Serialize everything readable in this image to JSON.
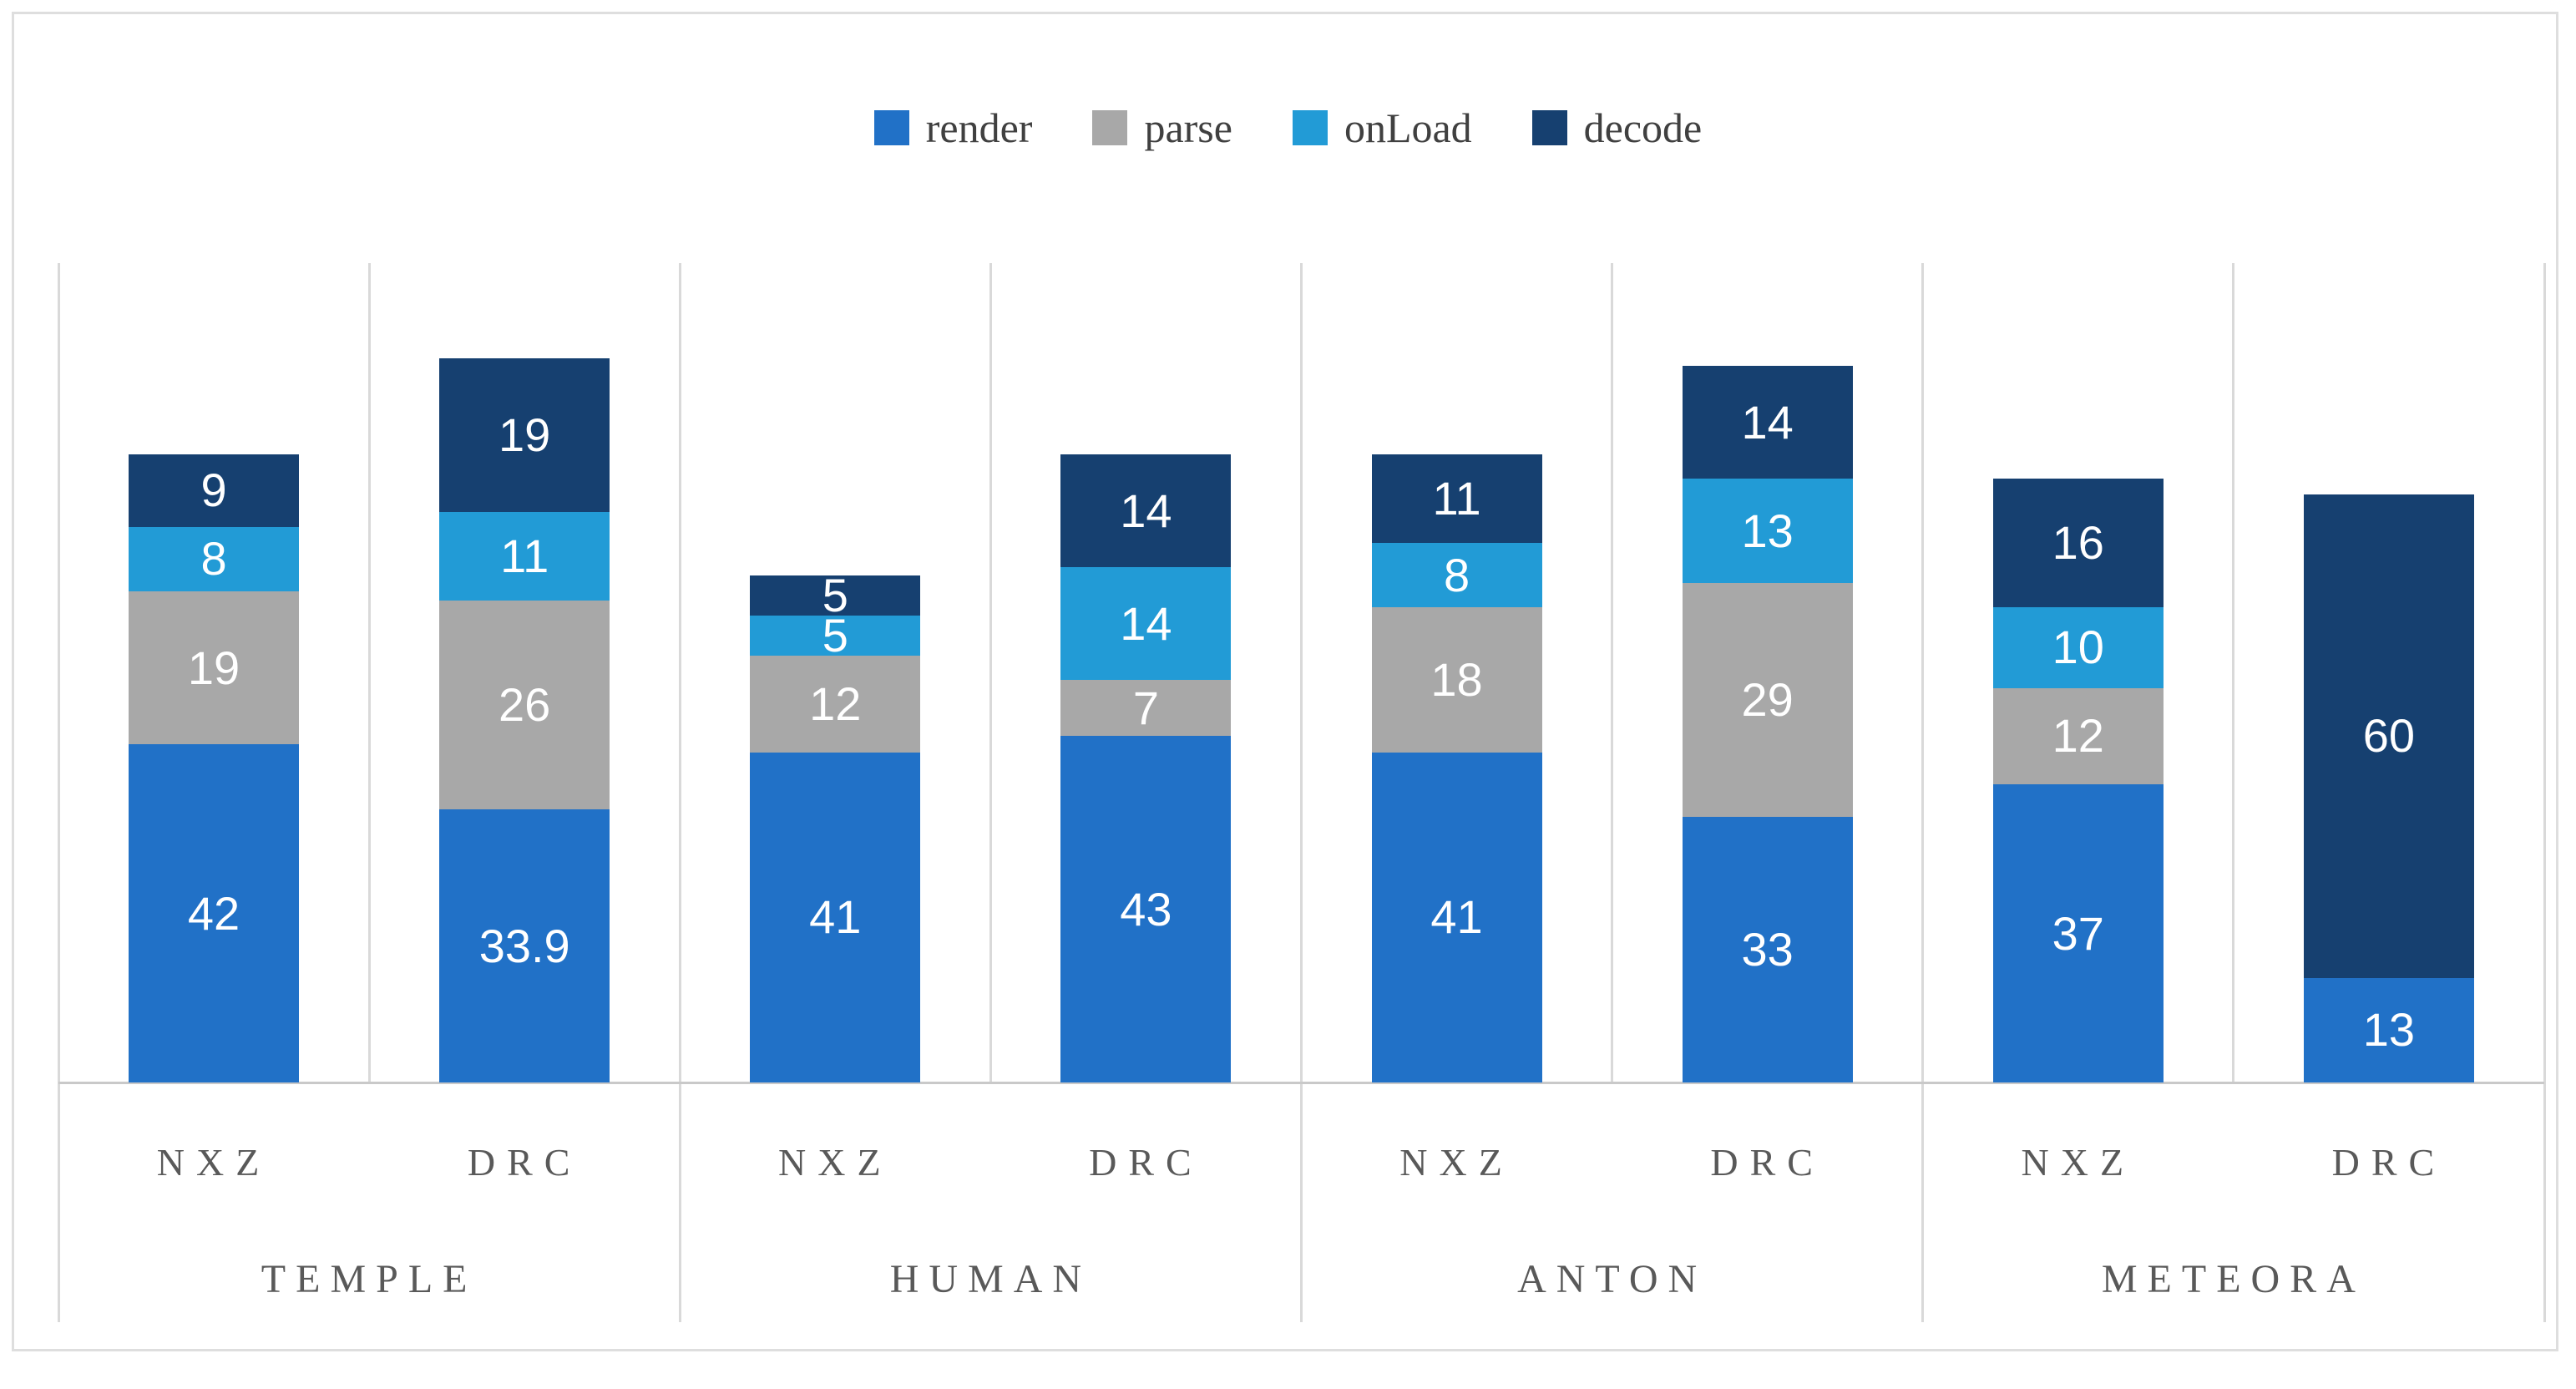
{
  "figure": {
    "background": "#ffffff",
    "border_color": "#dedede",
    "gridline_color": "#d9d9d9",
    "baseline_color": "#c9c9c9",
    "axis_text_color": "#595959",
    "legend_text_color": "#404040",
    "value_label_color": "#ffffff"
  },
  "legend": {
    "position": "top-center",
    "items": [
      {
        "label": "render",
        "color": "#2171C7"
      },
      {
        "label": "parse",
        "color": "#A8A8A8"
      },
      {
        "label": "onLoad",
        "color": "#229BD6"
      },
      {
        "label": "decode",
        "color": "#164070"
      }
    ]
  },
  "chart_data": {
    "type": "bar",
    "stacked": true,
    "orientation": "vertical",
    "grid": "vertical-category-separators",
    "legend_position": "top",
    "value_labels": "inside-white",
    "ylim": [
      0,
      117
    ],
    "group_labels": [
      "TEMPLE",
      "HUMAN",
      "ANTON",
      "METEORA"
    ],
    "category_labels": [
      "NXZ",
      "DRC",
      "NXZ",
      "DRC",
      "NXZ",
      "DRC",
      "NXZ",
      "DRC"
    ],
    "series": [
      {
        "name": "render",
        "color": "#2171C7",
        "values": [
          42,
          33.9,
          41,
          43,
          41,
          33,
          37,
          13
        ]
      },
      {
        "name": "parse",
        "color": "#A8A8A8",
        "values": [
          19,
          26,
          12,
          7,
          18,
          29,
          12,
          0
        ]
      },
      {
        "name": "onLoad",
        "color": "#229BD6",
        "values": [
          8,
          11,
          5,
          14,
          8,
          13,
          10,
          0
        ]
      },
      {
        "name": "decode",
        "color": "#164070",
        "values": [
          9,
          19,
          5,
          14,
          11,
          14,
          16,
          60
        ]
      }
    ],
    "totals": [
      78,
      89.9,
      63,
      78,
      78,
      89,
      75,
      73
    ]
  }
}
